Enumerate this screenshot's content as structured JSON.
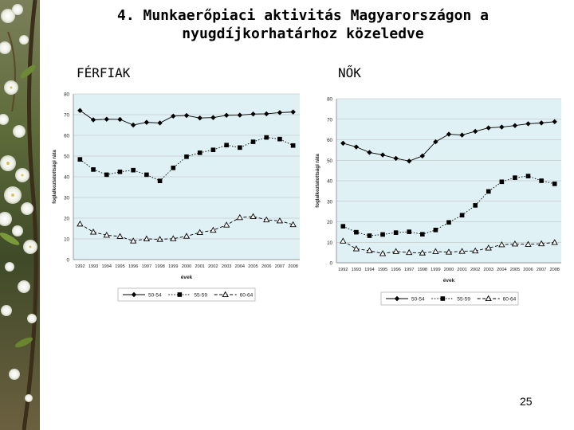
{
  "slide": {
    "title_line1": "4. Munkaerőpiaci aktivitás Magyarországon a",
    "title_line2": "nyugdíjkorhatárhoz közeledve",
    "label_left": "FÉRFIAK",
    "label_right": "NŐK",
    "page_number": "25"
  },
  "colors": {
    "plot_area": "#dff1f5",
    "gridline": "#b8b8b8",
    "series": "#000000",
    "photo_base": "#4b5a2e"
  },
  "chart_data": [
    {
      "type": "line",
      "title": "",
      "xlabel": "évek",
      "ylabel": "foglalkoztatottsági ráta",
      "x": [
        "1992",
        "1993",
        "1994",
        "1995",
        "1996",
        "1997",
        "1998",
        "1999",
        "2000",
        "2001",
        "2002",
        "2003",
        "2004",
        "2005",
        "2006",
        "2007",
        "2008"
      ],
      "ylim": [
        0,
        80
      ],
      "yticks": [
        "0",
        "10",
        "20",
        "30",
        "40",
        "50",
        "60",
        "70",
        "80"
      ],
      "grid": true,
      "legend_position": "bottom",
      "series": [
        {
          "name": "50-54",
          "marker": "diamond",
          "dash": "solid",
          "values": [
            72,
            67.5,
            67.8,
            67.7,
            65,
            66.3,
            66,
            69.3,
            69.6,
            68.4,
            68.6,
            69.7,
            69.8,
            70.3,
            70.4,
            71,
            71.3
          ]
        },
        {
          "name": "55-59",
          "marker": "square",
          "dash": "dotted",
          "values": [
            48.4,
            43.5,
            41,
            42.4,
            43.2,
            41,
            38,
            44.3,
            49.7,
            51.6,
            53,
            55.3,
            54.1,
            56.9,
            59,
            58.2,
            55.1
          ]
        },
        {
          "name": "60-64",
          "marker": "triangle",
          "dash": "dashed",
          "values": [
            17.2,
            13.3,
            11.8,
            11.2,
            9,
            10,
            9.8,
            10.1,
            11.3,
            13.1,
            14.2,
            16.7,
            20.3,
            20.8,
            19.2,
            18.7,
            16.9
          ]
        }
      ]
    },
    {
      "type": "line",
      "title": "",
      "xlabel": "évek",
      "ylabel": "foglalkoztatottsági ráta",
      "x": [
        "1992",
        "1993",
        "1994",
        "1995",
        "1996",
        "1997",
        "1998",
        "1999",
        "2000",
        "2001",
        "2002",
        "2003",
        "2004",
        "2005",
        "2006",
        "2007",
        "2008"
      ],
      "ylim": [
        0,
        80
      ],
      "yticks": [
        "0",
        "10",
        "20",
        "30",
        "40",
        "50",
        "60",
        "70",
        "80"
      ],
      "grid": true,
      "legend_position": "bottom",
      "series": [
        {
          "name": "50-54",
          "marker": "diamond",
          "dash": "solid",
          "values": [
            58.3,
            56.5,
            53.8,
            52.6,
            50.9,
            49.6,
            52.1,
            59,
            62.7,
            62.3,
            64.1,
            65.8,
            66.2,
            66.9,
            67.8,
            68.2,
            68.8
          ]
        },
        {
          "name": "55-59",
          "marker": "square",
          "dash": "dotted",
          "values": [
            17.8,
            14.9,
            13.2,
            13.8,
            14.7,
            15.1,
            13.9,
            16,
            19.7,
            23.2,
            28,
            34.8,
            39.5,
            41.5,
            42.3,
            40,
            38.5
          ]
        },
        {
          "name": "60-64",
          "marker": "triangle",
          "dash": "dashed",
          "values": [
            10.6,
            6.8,
            5.9,
            4.5,
            5.5,
            5,
            4.8,
            5.5,
            5.2,
            5.6,
            5.8,
            7.2,
            8.8,
            9.2,
            9,
            9.3,
            9.9
          ]
        }
      ]
    }
  ]
}
